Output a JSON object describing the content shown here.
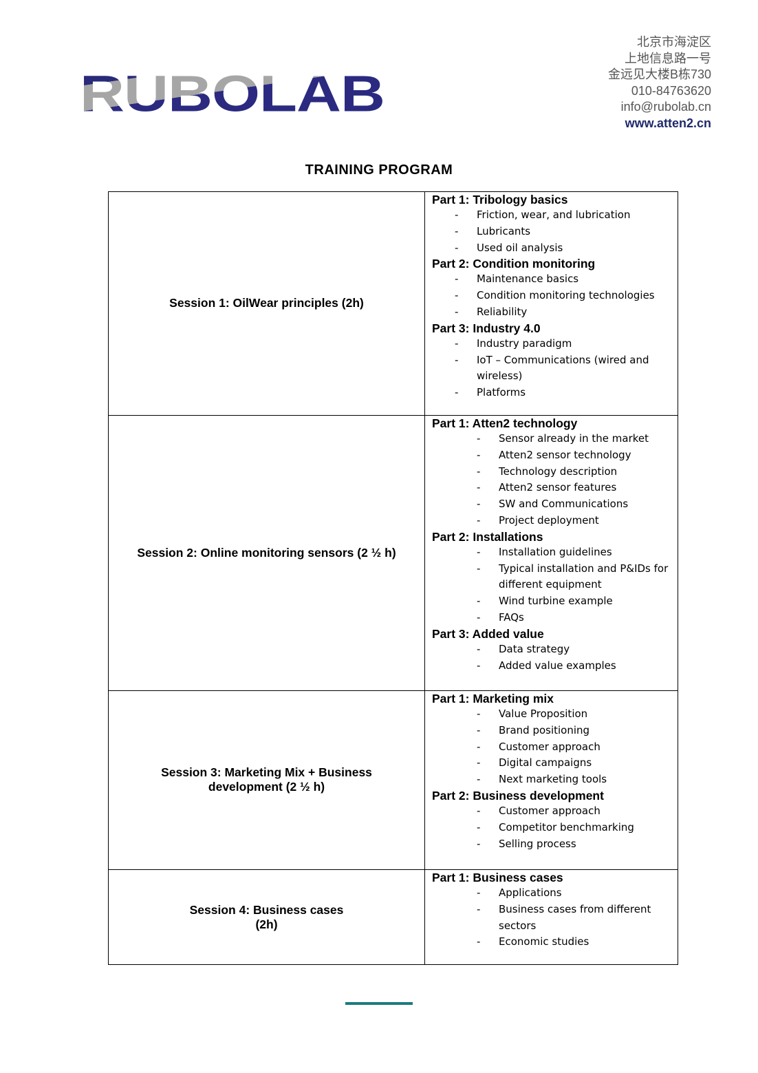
{
  "logo": "RUBOLAB",
  "address": [
    "北京市海淀区",
    "上地信息路一号",
    "金远见大楼B栋730",
    "010-84763620",
    "info@rubolab.cn"
  ],
  "website": "www.atten2.cn",
  "title": "TRAINING PROGRAM",
  "sessions": [
    {
      "name": "Session 1: OilWear principles (2h)",
      "parts": [
        {
          "title": "Part 1: Tribology basics",
          "items": [
            "Friction, wear, and lubrication",
            "Lubricants",
            "Used oil analysis"
          ]
        },
        {
          "title": "Part 2: Condition monitoring",
          "items": [
            "Maintenance basics",
            "Condition monitoring technologies",
            "Reliability"
          ]
        },
        {
          "title": "Part 3: Industry 4.0",
          "items": [
            "Industry paradigm",
            "IoT – Communications (wired and wireless)",
            "Platforms"
          ]
        }
      ]
    },
    {
      "name": "Session 2: Online monitoring sensors (2 ½ h)",
      "parts": [
        {
          "title": "Part 1: Atten2 technology",
          "items": [
            "Sensor already in the market",
            "Atten2 sensor technology",
            "Technology description",
            "Atten2 sensor features",
            "SW and Communications",
            "Project deployment"
          ]
        },
        {
          "title": "Part 2: Installations",
          "items": [
            "Installation guidelines",
            "Typical installation and P&IDs for different equipment",
            "Wind turbine example",
            "FAQs"
          ]
        },
        {
          "title": "Part 3: Added value",
          "items": [
            "Data strategy",
            "Added value examples"
          ]
        }
      ]
    },
    {
      "name": "Session 3: Marketing Mix + Business development (2 ½ h)",
      "parts": [
        {
          "title": "Part 1: Marketing mix",
          "items": [
            "Value Proposition",
            "Brand positioning",
            "Customer approach",
            "Digital campaigns",
            "Next marketing tools"
          ]
        },
        {
          "title": "Part 2: Business development",
          "items": [
            "Customer approach",
            "Competitor benchmarking",
            "Selling process"
          ]
        }
      ]
    },
    {
      "name": "Session 4: Business cases (2h)",
      "parts": [
        {
          "title": "Part 1: Business cases",
          "items": [
            "Applications",
            "Business cases from different sectors",
            "Economic studies"
          ]
        }
      ]
    }
  ]
}
